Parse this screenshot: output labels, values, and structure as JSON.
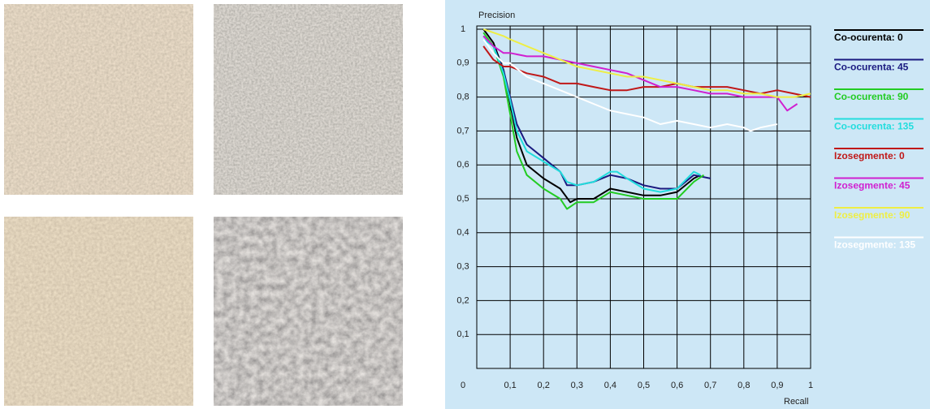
{
  "chart_data": {
    "type": "line",
    "y_label": "Precision",
    "x_label": "Recall",
    "xlim": [
      0,
      1
    ],
    "ylim": [
      0,
      1
    ],
    "xticks": [
      0,
      {
        "value": 0.1,
        "label": "0,1"
      },
      {
        "value": 0.2,
        "label": "0,2"
      },
      {
        "value": 0.3,
        "label": "0,3"
      },
      {
        "value": 0.4,
        "label": "0,4"
      },
      {
        "value": 0.5,
        "label": "0,5"
      },
      {
        "value": 0.6,
        "label": "0,6"
      },
      {
        "value": 0.7,
        "label": "0,7"
      },
      {
        "value": 0.8,
        "label": "0,8"
      },
      {
        "value": 0.9,
        "label": "0,9"
      },
      1
    ],
    "yticks": [
      {
        "value": 0.1,
        "label": "0,1"
      },
      {
        "value": 0.2,
        "label": "0,2"
      },
      {
        "value": 0.3,
        "label": "0,3"
      },
      {
        "value": 0.4,
        "label": "0,4"
      },
      {
        "value": 0.5,
        "label": "0,5"
      },
      {
        "value": 0.6,
        "label": "0,6"
      },
      {
        "value": 0.7,
        "label": "0,7"
      },
      {
        "value": 0.8,
        "label": "0,8"
      },
      {
        "value": 0.9,
        "label": "0,9"
      },
      1
    ],
    "grid": true,
    "series": [
      {
        "name": "Co-ocurenta: 0",
        "color": "#000000",
        "x": [
          0.02,
          0.05,
          0.08,
          0.1,
          0.12,
          0.15,
          0.2,
          0.25,
          0.28,
          0.3,
          0.35,
          0.4,
          0.45,
          0.5,
          0.55,
          0.6,
          0.65,
          0.67
        ],
        "values": [
          1.0,
          0.96,
          0.88,
          0.78,
          0.68,
          0.6,
          0.56,
          0.53,
          0.49,
          0.5,
          0.5,
          0.53,
          0.52,
          0.51,
          0.51,
          0.52,
          0.56,
          0.57
        ]
      },
      {
        "name": "Co-ocurenta: 45",
        "color": "#1a1a80",
        "x": [
          0.02,
          0.05,
          0.08,
          0.1,
          0.12,
          0.15,
          0.2,
          0.25,
          0.27,
          0.3,
          0.35,
          0.4,
          0.45,
          0.5,
          0.55,
          0.6,
          0.65,
          0.7
        ],
        "values": [
          0.98,
          0.95,
          0.88,
          0.8,
          0.72,
          0.66,
          0.62,
          0.58,
          0.54,
          0.54,
          0.55,
          0.57,
          0.56,
          0.54,
          0.53,
          0.53,
          0.57,
          0.56
        ]
      },
      {
        "name": "Co-ocurenta: 90",
        "color": "#22cc22",
        "x": [
          0.02,
          0.05,
          0.08,
          0.1,
          0.12,
          0.15,
          0.2,
          0.25,
          0.27,
          0.3,
          0.35,
          0.4,
          0.45,
          0.5,
          0.55,
          0.6,
          0.65,
          0.68
        ],
        "values": [
          0.99,
          0.95,
          0.86,
          0.75,
          0.64,
          0.57,
          0.53,
          0.5,
          0.47,
          0.49,
          0.49,
          0.52,
          0.51,
          0.5,
          0.5,
          0.5,
          0.55,
          0.57
        ]
      },
      {
        "name": "Co-ocurenta: 135",
        "color": "#22dddd",
        "x": [
          0.02,
          0.05,
          0.08,
          0.1,
          0.12,
          0.15,
          0.2,
          0.25,
          0.27,
          0.3,
          0.35,
          0.4,
          0.42,
          0.45,
          0.5,
          0.55,
          0.6,
          0.65,
          0.67
        ],
        "values": [
          0.97,
          0.95,
          0.87,
          0.79,
          0.7,
          0.64,
          0.61,
          0.58,
          0.55,
          0.54,
          0.55,
          0.58,
          0.58,
          0.56,
          0.53,
          0.52,
          0.53,
          0.58,
          0.57
        ]
      },
      {
        "name": "Izosegmente: 0",
        "color": "#c01818",
        "x": [
          0.02,
          0.05,
          0.08,
          0.1,
          0.15,
          0.2,
          0.25,
          0.3,
          0.35,
          0.4,
          0.45,
          0.5,
          0.55,
          0.6,
          0.65,
          0.7,
          0.75,
          0.8,
          0.85,
          0.9,
          0.95,
          1.0
        ],
        "values": [
          0.95,
          0.91,
          0.89,
          0.89,
          0.87,
          0.86,
          0.84,
          0.84,
          0.83,
          0.82,
          0.82,
          0.83,
          0.83,
          0.84,
          0.83,
          0.83,
          0.83,
          0.82,
          0.81,
          0.82,
          0.81,
          0.8
        ]
      },
      {
        "name": "Izosegmente: 45",
        "color": "#d020d0",
        "x": [
          0.02,
          0.05,
          0.08,
          0.1,
          0.15,
          0.2,
          0.25,
          0.3,
          0.35,
          0.4,
          0.45,
          0.5,
          0.55,
          0.6,
          0.65,
          0.7,
          0.75,
          0.8,
          0.85,
          0.9,
          0.93,
          0.96
        ],
        "values": [
          0.98,
          0.95,
          0.93,
          0.93,
          0.92,
          0.92,
          0.91,
          0.9,
          0.89,
          0.88,
          0.87,
          0.85,
          0.83,
          0.83,
          0.82,
          0.81,
          0.81,
          0.8,
          0.8,
          0.8,
          0.76,
          0.78
        ]
      },
      {
        "name": "Izosegmente: 90",
        "color": "#eeee44",
        "x": [
          0.02,
          0.05,
          0.08,
          0.1,
          0.15,
          0.2,
          0.25,
          0.3,
          0.35,
          0.4,
          0.45,
          0.5,
          0.55,
          0.6,
          0.65,
          0.7,
          0.75,
          0.8,
          0.85,
          0.9,
          0.95,
          1.0
        ],
        "values": [
          1.0,
          0.99,
          0.98,
          0.97,
          0.95,
          0.93,
          0.91,
          0.89,
          0.88,
          0.87,
          0.86,
          0.86,
          0.85,
          0.84,
          0.83,
          0.82,
          0.82,
          0.81,
          0.81,
          0.8,
          0.8,
          0.81
        ]
      },
      {
        "name": "Izosegmente: 135",
        "color": "#ffffff",
        "x": [
          0.02,
          0.05,
          0.08,
          0.1,
          0.15,
          0.2,
          0.25,
          0.3,
          0.35,
          0.4,
          0.45,
          0.5,
          0.55,
          0.6,
          0.65,
          0.7,
          0.75,
          0.8,
          0.82,
          0.85,
          0.9
        ],
        "values": [
          0.97,
          0.93,
          0.9,
          0.9,
          0.86,
          0.84,
          0.82,
          0.8,
          0.78,
          0.76,
          0.75,
          0.74,
          0.72,
          0.73,
          0.72,
          0.71,
          0.72,
          0.71,
          0.7,
          0.71,
          0.72
        ]
      }
    ]
  }
}
